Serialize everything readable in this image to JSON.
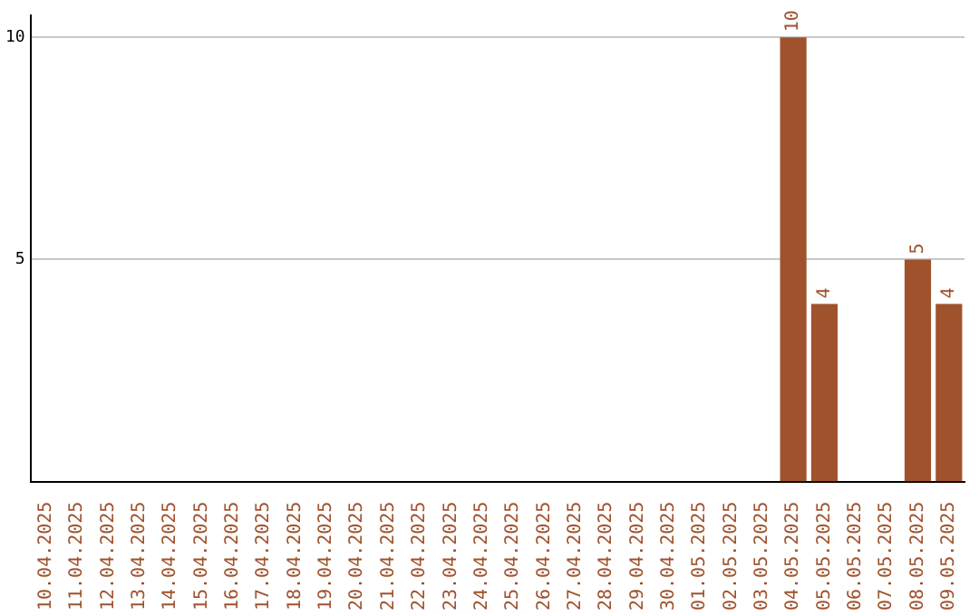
{
  "chart_data": {
    "type": "bar",
    "categories": [
      "10.04.2025",
      "11.04.2025",
      "12.04.2025",
      "13.04.2025",
      "14.04.2025",
      "15.04.2025",
      "16.04.2025",
      "17.04.2025",
      "18.04.2025",
      "19.04.2025",
      "20.04.2025",
      "21.04.2025",
      "22.04.2025",
      "23.04.2025",
      "24.04.2025",
      "25.04.2025",
      "26.04.2025",
      "27.04.2025",
      "28.04.2025",
      "29.04.2025",
      "30.04.2025",
      "01.05.2025",
      "02.05.2025",
      "03.05.2025",
      "04.05.2025",
      "05.05.2025",
      "06.05.2025",
      "07.05.2025",
      "08.05.2025",
      "09.05.2025"
    ],
    "values": [
      0,
      0,
      0,
      0,
      0,
      0,
      0,
      0,
      0,
      0,
      0,
      0,
      0,
      0,
      0,
      0,
      0,
      0,
      0,
      0,
      0,
      0,
      0,
      0,
      10,
      4,
      0,
      0,
      5,
      4
    ],
    "value_labels": [
      null,
      null,
      null,
      null,
      null,
      null,
      null,
      null,
      null,
      null,
      null,
      null,
      null,
      null,
      null,
      null,
      null,
      null,
      null,
      null,
      null,
      null,
      null,
      null,
      "10",
      "4",
      null,
      null,
      "5",
      "4"
    ],
    "color": "#a0522d",
    "ylim": [
      0,
      10.5
    ],
    "yticks": [
      5,
      10
    ],
    "grid": "y",
    "legend": false
  }
}
